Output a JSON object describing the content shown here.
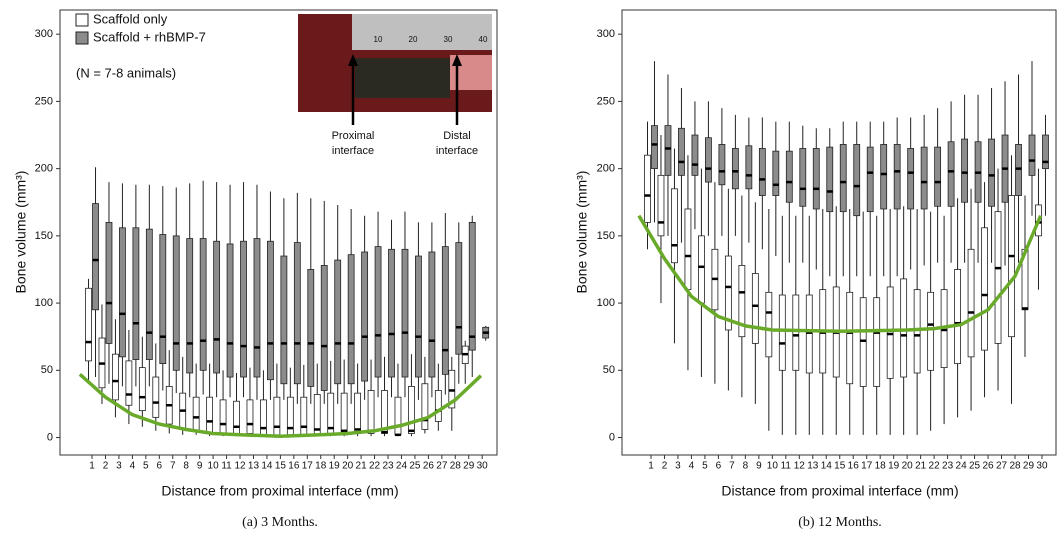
{
  "chart_data": [
    {
      "type": "box",
      "caption": "(a)  3 Months.",
      "ylabel": "Bone volume (mm³)",
      "xlabel": "Distance from proximal interface (mm)",
      "note": "(N = 7-8 animals)",
      "inset_labels": [
        "Proximal interface",
        "Distal interface"
      ],
      "ruler_labels": [
        "10",
        "20",
        "30",
        "40"
      ],
      "xlim": [
        -1.38,
        31.1
      ],
      "ylim": [
        -13,
        318
      ],
      "yticks": [
        0,
        50,
        100,
        150,
        200,
        250,
        300
      ],
      "x": [
        1,
        2,
        3,
        4,
        5,
        6,
        7,
        8,
        9,
        10,
        11,
        12,
        13,
        14,
        15,
        16,
        17,
        18,
        19,
        20,
        21,
        22,
        23,
        24,
        25,
        26,
        27,
        28,
        29,
        30
      ],
      "series": [
        {
          "name": "Scaffold only",
          "color": "#ffffff",
          "values": [
            [
              40,
              57,
              71,
              111,
              118
            ],
            [
              25,
              37,
              55,
              74,
              99
            ],
            [
              15,
              28,
              42,
              62,
              88
            ],
            [
              10,
              24,
              32,
              57,
              80
            ],
            [
              8,
              20,
              30,
              52,
              75
            ],
            [
              5,
              15,
              26,
              45,
              70
            ],
            [
              3,
              10,
              24,
              38,
              65
            ],
            [
              2,
              6,
              20,
              33,
              60
            ],
            [
              2,
              5,
              15,
              30,
              55
            ],
            [
              1,
              4,
              12,
              30,
              55
            ],
            [
              1,
              3,
              10,
              28,
              50
            ],
            [
              1,
              3,
              8,
              27,
              48
            ],
            [
              1,
              3,
              10,
              28,
              52
            ],
            [
              1,
              2,
              7,
              28,
              50
            ],
            [
              1,
              2,
              8,
              30,
              55
            ],
            [
              1,
              2,
              7,
              30,
              52
            ],
            [
              1,
              2,
              8,
              30,
              54
            ],
            [
              1,
              2,
              6,
              32,
              55
            ],
            [
              1,
              2,
              7,
              33,
              57
            ],
            [
              1,
              2,
              5,
              33,
              58
            ],
            [
              1,
              3,
              6,
              33,
              55
            ],
            [
              1,
              3,
              5,
              35,
              58
            ],
            [
              1,
              3,
              4,
              35,
              60
            ],
            [
              1,
              2,
              2,
              30,
              55
            ],
            [
              1,
              3,
              5,
              38,
              62
            ],
            [
              3,
              6,
              13,
              40,
              60
            ],
            [
              5,
              12,
              20,
              35,
              55
            ],
            [
              5,
              22,
              35,
              50,
              60
            ],
            [
              40,
              55,
              62,
              68,
              72
            ],
            null
          ]
        },
        {
          "name": "Scaffold + rhBMP-7",
          "color": "#8c8c8c",
          "values": [
            [
              45,
              95,
              132,
              174,
              201
            ],
            [
              40,
              70,
              100,
              160,
              190
            ],
            [
              38,
              60,
              92,
              156,
              189
            ],
            [
              38,
              58,
              85,
              156,
              188
            ],
            [
              38,
              58,
              78,
              155,
              188
            ],
            [
              35,
              55,
              75,
              151,
              187
            ],
            [
              33,
              50,
              70,
              150,
              186
            ],
            [
              30,
              48,
              70,
              148,
              189
            ],
            [
              32,
              50,
              72,
              148,
              191
            ],
            [
              30,
              48,
              73,
              146,
              190
            ],
            [
              30,
              45,
              70,
              144,
              188
            ],
            [
              30,
              45,
              68,
              146,
              190
            ],
            [
              28,
              45,
              67,
              148,
              188
            ],
            [
              28,
              43,
              70,
              146,
              183
            ],
            [
              28,
              40,
              70,
              135,
              178
            ],
            [
              25,
              40,
              70,
              145,
              182
            ],
            [
              25,
              38,
              70,
              125,
              178
            ],
            [
              25,
              35,
              68,
              128,
              176
            ],
            [
              25,
              40,
              70,
              132,
              173
            ],
            [
              25,
              40,
              70,
              136,
              170
            ],
            [
              28,
              42,
              75,
              138,
              165
            ],
            [
              30,
              45,
              76,
              142,
              168
            ],
            [
              30,
              45,
              77,
              140,
              162
            ],
            [
              30,
              45,
              78,
              140,
              168
            ],
            [
              28,
              45,
              75,
              135,
              160
            ],
            [
              30,
              45,
              72,
              138,
              160
            ],
            [
              32,
              47,
              65,
              142,
              167
            ],
            [
              40,
              62,
              82,
              145,
              160
            ],
            [
              45,
              65,
              75,
              160,
              165
            ],
            [
              72,
              74,
              78,
              82,
              83
            ]
          ]
        }
      ],
      "trend": {
        "color": "#6aaa2a",
        "x": [
          0.1,
          2,
          4,
          6,
          8,
          10,
          12,
          15,
          18,
          20,
          22,
          24,
          26,
          28,
          29.9
        ],
        "values": [
          47,
          30,
          17,
          10,
          6,
          3,
          2,
          1,
          2,
          3,
          5,
          9,
          15,
          28,
          46
        ]
      }
    },
    {
      "type": "box",
      "caption": "(b)  12 Months.",
      "ylabel": "Bone volume (mm³)",
      "xlabel": "Distance from proximal interface (mm)",
      "xlim": [
        -1.15,
        31.04
      ],
      "ylim": [
        -13,
        318
      ],
      "yticks": [
        0,
        50,
        100,
        150,
        200,
        250,
        300
      ],
      "x": [
        1,
        2,
        3,
        4,
        5,
        6,
        7,
        8,
        9,
        10,
        11,
        12,
        13,
        14,
        15,
        16,
        17,
        18,
        19,
        20,
        21,
        22,
        23,
        24,
        25,
        26,
        27,
        28,
        29,
        30
      ],
      "series": [
        {
          "color": "#ffffff",
          "values": [
            [
              140,
              160,
              180,
              210,
              235
            ],
            [
              100,
              150,
              160,
              195,
              225
            ],
            [
              70,
              130,
              143,
              185,
              215
            ],
            [
              50,
              110,
              135,
              170,
              210
            ],
            [
              45,
              100,
              127,
              150,
              200
            ],
            [
              40,
              95,
              118,
              140,
              190
            ],
            [
              35,
              80,
              112,
              135,
              185
            ],
            [
              30,
              75,
              108,
              128,
              180
            ],
            [
              25,
              70,
              98,
              122,
              175
            ],
            [
              5,
              60,
              93,
              108,
              170
            ],
            [
              2,
              50,
              70,
              106,
              165
            ],
            [
              2,
              50,
              76,
              106,
              165
            ],
            [
              2,
              48,
              78,
              106,
              165
            ],
            [
              2,
              48,
              78,
              110,
              170
            ],
            [
              2,
              45,
              78,
              112,
              172
            ],
            [
              2,
              40,
              78,
              108,
              170
            ],
            [
              2,
              38,
              72,
              104,
              168
            ],
            [
              2,
              38,
              78,
              104,
              165
            ],
            [
              2,
              44,
              77,
              112,
              170
            ],
            [
              2,
              45,
              76,
              118,
              172
            ],
            [
              2,
              48,
              76,
              110,
              170
            ],
            [
              5,
              50,
              84,
              108,
              168
            ],
            [
              10,
              52,
              80,
              110,
              165
            ],
            [
              15,
              55,
              85,
              125,
              178
            ],
            [
              20,
              60,
              93,
              140,
              185
            ],
            [
              30,
              65,
              106,
              156,
              190
            ],
            [
              35,
              70,
              126,
              168,
              200
            ],
            [
              25,
              75,
              135,
              180,
              210
            ],
            [
              60,
              95,
              96,
              140,
              180
            ],
            [
              110,
              150,
              160,
              173,
              200
            ]
          ]
        },
        {
          "color": "#8c8c8c",
          "values": [
            [
              160,
              200,
              218,
              232,
              280
            ],
            [
              150,
              195,
              215,
              232,
              270
            ],
            [
              145,
              195,
              205,
              230,
              260
            ],
            [
              155,
              195,
              203,
              225,
              250
            ],
            [
              150,
              190,
              200,
              223,
              250
            ],
            [
              150,
              188,
              198,
              218,
              245
            ],
            [
              150,
              185,
              198,
              215,
              240
            ],
            [
              145,
              185,
              195,
              217,
              238
            ],
            [
              140,
              180,
              192,
              215,
              238
            ],
            [
              135,
              180,
              188,
              213,
              235
            ],
            [
              130,
              175,
              190,
              213,
              235
            ],
            [
              130,
              172,
              185,
              215,
              232
            ],
            [
              125,
              170,
              185,
              215,
              230
            ],
            [
              120,
              168,
              183,
              216,
              230
            ],
            [
              120,
              168,
              190,
              218,
              235
            ],
            [
              120,
              165,
              187,
              218,
              235
            ],
            [
              120,
              168,
              197,
              216,
              235
            ],
            [
              120,
              170,
              196,
              218,
              235
            ],
            [
              120,
              170,
              198,
              218,
              238
            ],
            [
              125,
              170,
              197,
              215,
              238
            ],
            [
              128,
              170,
              190,
              216,
              240
            ],
            [
              130,
              172,
              190,
              216,
              245
            ],
            [
              130,
              172,
              198,
              220,
              250
            ],
            [
              130,
              175,
              197,
              222,
              255
            ],
            [
              130,
              175,
              197,
              220,
              255
            ],
            [
              130,
              172,
              195,
              222,
              260
            ],
            [
              128,
              175,
              200,
              225,
              265
            ],
            [
              130,
              180,
              200,
              218,
              270
            ],
            [
              165,
              195,
              206,
              225,
              280
            ],
            [
              165,
              200,
              205,
              225,
              240
            ]
          ]
        }
      ],
      "trend": {
        "color": "#6aaa2a",
        "x": [
          0.1,
          2,
          4,
          6,
          8,
          10,
          15,
          20,
          22,
          24,
          26,
          28,
          29.9
        ],
        "values": [
          165,
          133,
          105,
          90,
          83,
          80,
          79,
          80,
          81,
          84,
          95,
          120,
          165
        ]
      }
    }
  ]
}
